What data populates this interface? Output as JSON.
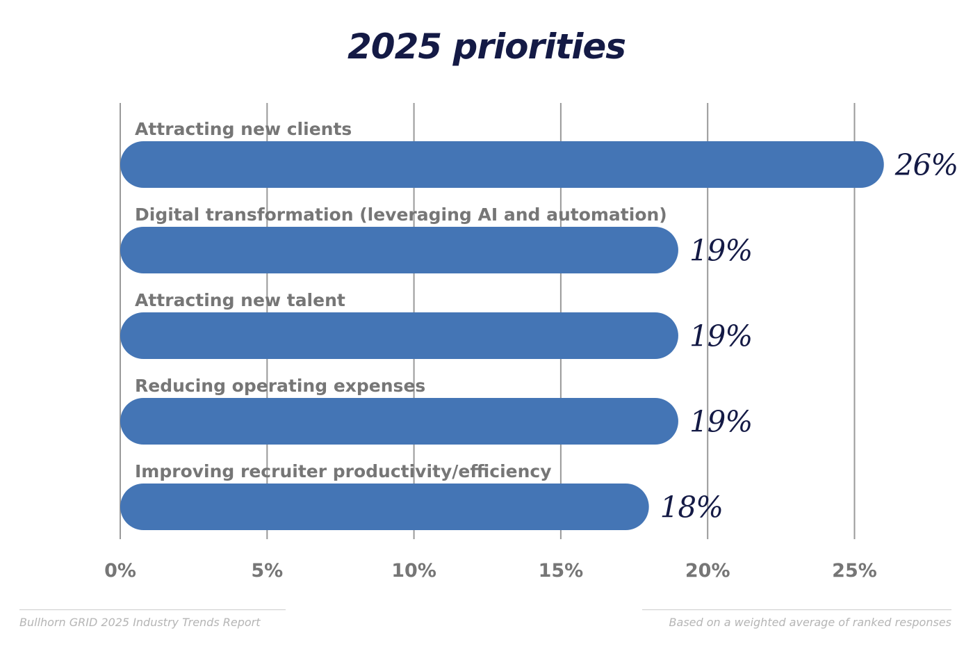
{
  "chart_data": {
    "type": "bar",
    "orientation": "horizontal",
    "title": "2025 priorities",
    "categories": [
      "Attracting new clients",
      "Digital transformation (leveraging AI and automation)",
      "Attracting new talent",
      "Reducing operating expenses",
      "Improving recruiter productivity/efficiency"
    ],
    "values": [
      26,
      19,
      19,
      19,
      18
    ],
    "value_labels": [
      "26%",
      "19%",
      "19%",
      "19%",
      "18%"
    ],
    "xlim": [
      0,
      25
    ],
    "x_ticks": [
      0,
      5,
      10,
      15,
      20,
      25
    ],
    "x_tick_labels": [
      "0%",
      "5%",
      "10%",
      "15%",
      "20%",
      "25%"
    ],
    "grid": true,
    "bar_color": "#4475b5",
    "title_color": "#141a45",
    "label_color": "#767676",
    "grid_color": "#999999"
  },
  "footer": {
    "source": "Bullhorn GRID 2025 Industry Trends Report",
    "note": "Based on a weighted average of ranked responses"
  }
}
